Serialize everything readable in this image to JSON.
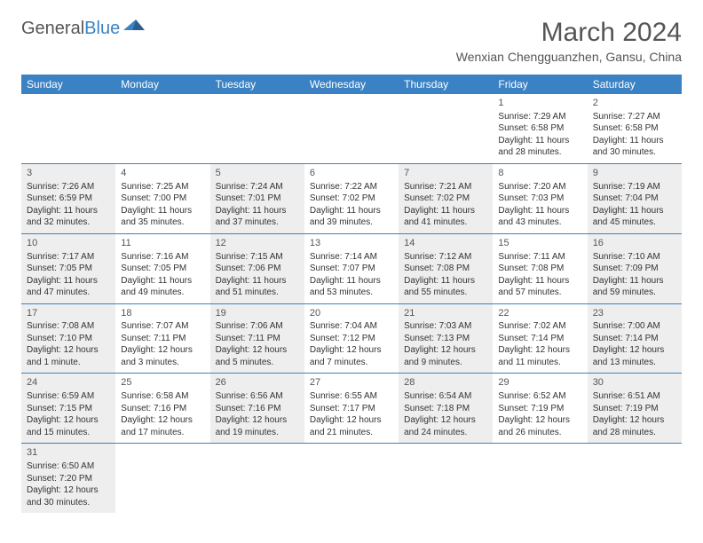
{
  "brand": {
    "name1": "General",
    "name2": "Blue"
  },
  "title": "March 2024",
  "location": "Wenxian Chengguanzhen, Gansu, China",
  "colors": {
    "header_bg": "#3b82c4",
    "header_text": "#ffffff",
    "shaded_bg": "#eeeeee",
    "border": "#3b82c4",
    "text": "#333333",
    "title_text": "#555555"
  },
  "day_headers": [
    "Sunday",
    "Monday",
    "Tuesday",
    "Wednesday",
    "Thursday",
    "Friday",
    "Saturday"
  ],
  "weeks": [
    [
      {
        "blank": true
      },
      {
        "blank": true
      },
      {
        "blank": true
      },
      {
        "blank": true
      },
      {
        "blank": true
      },
      {
        "day": "1",
        "sunrise": "Sunrise: 7:29 AM",
        "sunset": "Sunset: 6:58 PM",
        "daylight1": "Daylight: 11 hours",
        "daylight2": "and 28 minutes."
      },
      {
        "day": "2",
        "sunrise": "Sunrise: 7:27 AM",
        "sunset": "Sunset: 6:58 PM",
        "daylight1": "Daylight: 11 hours",
        "daylight2": "and 30 minutes."
      }
    ],
    [
      {
        "day": "3",
        "shaded": true,
        "sunrise": "Sunrise: 7:26 AM",
        "sunset": "Sunset: 6:59 PM",
        "daylight1": "Daylight: 11 hours",
        "daylight2": "and 32 minutes."
      },
      {
        "day": "4",
        "sunrise": "Sunrise: 7:25 AM",
        "sunset": "Sunset: 7:00 PM",
        "daylight1": "Daylight: 11 hours",
        "daylight2": "and 35 minutes."
      },
      {
        "day": "5",
        "shaded": true,
        "sunrise": "Sunrise: 7:24 AM",
        "sunset": "Sunset: 7:01 PM",
        "daylight1": "Daylight: 11 hours",
        "daylight2": "and 37 minutes."
      },
      {
        "day": "6",
        "sunrise": "Sunrise: 7:22 AM",
        "sunset": "Sunset: 7:02 PM",
        "daylight1": "Daylight: 11 hours",
        "daylight2": "and 39 minutes."
      },
      {
        "day": "7",
        "shaded": true,
        "sunrise": "Sunrise: 7:21 AM",
        "sunset": "Sunset: 7:02 PM",
        "daylight1": "Daylight: 11 hours",
        "daylight2": "and 41 minutes."
      },
      {
        "day": "8",
        "sunrise": "Sunrise: 7:20 AM",
        "sunset": "Sunset: 7:03 PM",
        "daylight1": "Daylight: 11 hours",
        "daylight2": "and 43 minutes."
      },
      {
        "day": "9",
        "shaded": true,
        "sunrise": "Sunrise: 7:19 AM",
        "sunset": "Sunset: 7:04 PM",
        "daylight1": "Daylight: 11 hours",
        "daylight2": "and 45 minutes."
      }
    ],
    [
      {
        "day": "10",
        "shaded": true,
        "sunrise": "Sunrise: 7:17 AM",
        "sunset": "Sunset: 7:05 PM",
        "daylight1": "Daylight: 11 hours",
        "daylight2": "and 47 minutes."
      },
      {
        "day": "11",
        "sunrise": "Sunrise: 7:16 AM",
        "sunset": "Sunset: 7:05 PM",
        "daylight1": "Daylight: 11 hours",
        "daylight2": "and 49 minutes."
      },
      {
        "day": "12",
        "shaded": true,
        "sunrise": "Sunrise: 7:15 AM",
        "sunset": "Sunset: 7:06 PM",
        "daylight1": "Daylight: 11 hours",
        "daylight2": "and 51 minutes."
      },
      {
        "day": "13",
        "sunrise": "Sunrise: 7:14 AM",
        "sunset": "Sunset: 7:07 PM",
        "daylight1": "Daylight: 11 hours",
        "daylight2": "and 53 minutes."
      },
      {
        "day": "14",
        "shaded": true,
        "sunrise": "Sunrise: 7:12 AM",
        "sunset": "Sunset: 7:08 PM",
        "daylight1": "Daylight: 11 hours",
        "daylight2": "and 55 minutes."
      },
      {
        "day": "15",
        "sunrise": "Sunrise: 7:11 AM",
        "sunset": "Sunset: 7:08 PM",
        "daylight1": "Daylight: 11 hours",
        "daylight2": "and 57 minutes."
      },
      {
        "day": "16",
        "shaded": true,
        "sunrise": "Sunrise: 7:10 AM",
        "sunset": "Sunset: 7:09 PM",
        "daylight1": "Daylight: 11 hours",
        "daylight2": "and 59 minutes."
      }
    ],
    [
      {
        "day": "17",
        "shaded": true,
        "sunrise": "Sunrise: 7:08 AM",
        "sunset": "Sunset: 7:10 PM",
        "daylight1": "Daylight: 12 hours",
        "daylight2": "and 1 minute."
      },
      {
        "day": "18",
        "sunrise": "Sunrise: 7:07 AM",
        "sunset": "Sunset: 7:11 PM",
        "daylight1": "Daylight: 12 hours",
        "daylight2": "and 3 minutes."
      },
      {
        "day": "19",
        "shaded": true,
        "sunrise": "Sunrise: 7:06 AM",
        "sunset": "Sunset: 7:11 PM",
        "daylight1": "Daylight: 12 hours",
        "daylight2": "and 5 minutes."
      },
      {
        "day": "20",
        "sunrise": "Sunrise: 7:04 AM",
        "sunset": "Sunset: 7:12 PM",
        "daylight1": "Daylight: 12 hours",
        "daylight2": "and 7 minutes."
      },
      {
        "day": "21",
        "shaded": true,
        "sunrise": "Sunrise: 7:03 AM",
        "sunset": "Sunset: 7:13 PM",
        "daylight1": "Daylight: 12 hours",
        "daylight2": "and 9 minutes."
      },
      {
        "day": "22",
        "sunrise": "Sunrise: 7:02 AM",
        "sunset": "Sunset: 7:14 PM",
        "daylight1": "Daylight: 12 hours",
        "daylight2": "and 11 minutes."
      },
      {
        "day": "23",
        "shaded": true,
        "sunrise": "Sunrise: 7:00 AM",
        "sunset": "Sunset: 7:14 PM",
        "daylight1": "Daylight: 12 hours",
        "daylight2": "and 13 minutes."
      }
    ],
    [
      {
        "day": "24",
        "shaded": true,
        "sunrise": "Sunrise: 6:59 AM",
        "sunset": "Sunset: 7:15 PM",
        "daylight1": "Daylight: 12 hours",
        "daylight2": "and 15 minutes."
      },
      {
        "day": "25",
        "sunrise": "Sunrise: 6:58 AM",
        "sunset": "Sunset: 7:16 PM",
        "daylight1": "Daylight: 12 hours",
        "daylight2": "and 17 minutes."
      },
      {
        "day": "26",
        "shaded": true,
        "sunrise": "Sunrise: 6:56 AM",
        "sunset": "Sunset: 7:16 PM",
        "daylight1": "Daylight: 12 hours",
        "daylight2": "and 19 minutes."
      },
      {
        "day": "27",
        "sunrise": "Sunrise: 6:55 AM",
        "sunset": "Sunset: 7:17 PM",
        "daylight1": "Daylight: 12 hours",
        "daylight2": "and 21 minutes."
      },
      {
        "day": "28",
        "shaded": true,
        "sunrise": "Sunrise: 6:54 AM",
        "sunset": "Sunset: 7:18 PM",
        "daylight1": "Daylight: 12 hours",
        "daylight2": "and 24 minutes."
      },
      {
        "day": "29",
        "sunrise": "Sunrise: 6:52 AM",
        "sunset": "Sunset: 7:19 PM",
        "daylight1": "Daylight: 12 hours",
        "daylight2": "and 26 minutes."
      },
      {
        "day": "30",
        "shaded": true,
        "sunrise": "Sunrise: 6:51 AM",
        "sunset": "Sunset: 7:19 PM",
        "daylight1": "Daylight: 12 hours",
        "daylight2": "and 28 minutes."
      }
    ],
    [
      {
        "day": "31",
        "shaded": true,
        "sunrise": "Sunrise: 6:50 AM",
        "sunset": "Sunset: 7:20 PM",
        "daylight1": "Daylight: 12 hours",
        "daylight2": "and 30 minutes."
      },
      {
        "blank": true
      },
      {
        "blank": true
      },
      {
        "blank": true
      },
      {
        "blank": true
      },
      {
        "blank": true
      },
      {
        "blank": true
      }
    ]
  ]
}
